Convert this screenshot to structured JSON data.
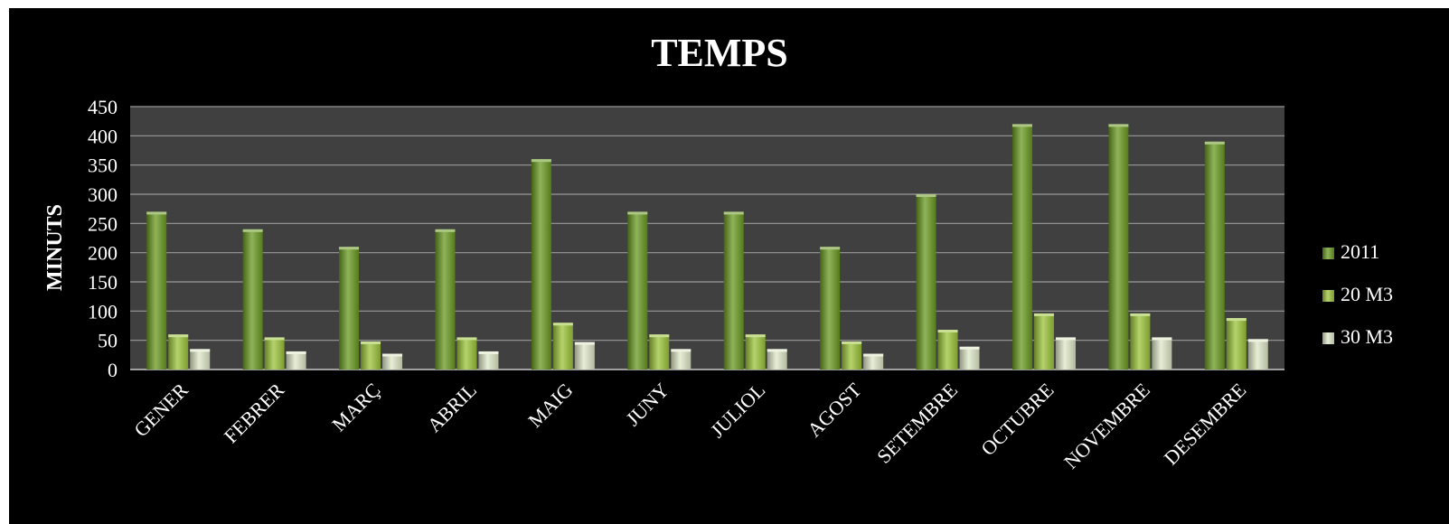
{
  "chart_data": {
    "type": "bar",
    "title": "TEMPS",
    "xlabel": "",
    "ylabel": "MINUTS",
    "ylim": [
      0,
      450
    ],
    "yticks": [
      0,
      50,
      100,
      150,
      200,
      250,
      300,
      350,
      400,
      450
    ],
    "grid": true,
    "legend_position": "right",
    "categories": [
      "GENER",
      "FEBRER",
      "MARÇ",
      "ABRIL",
      "MAIG",
      "JUNY",
      "JULIOL",
      "AGOST",
      "SETEMBRE",
      "OCTUBRE",
      "NOVEMBRE",
      "DESEMBRE"
    ],
    "series": [
      {
        "name": "2011",
        "values": [
          270,
          240,
          210,
          240,
          360,
          270,
          270,
          210,
          300,
          420,
          420,
          390
        ]
      },
      {
        "name": "20 M3",
        "values": [
          60,
          55,
          48,
          55,
          80,
          60,
          60,
          48,
          68,
          96,
          96,
          88
        ]
      },
      {
        "name": "30 M3",
        "values": [
          35,
          31,
          27,
          31,
          47,
          35,
          35,
          27,
          39,
          55,
          55,
          52
        ]
      }
    ]
  },
  "colors": {
    "background": "#000000",
    "plot_area": "#404040",
    "gridline": "#9a9a9a",
    "text": "#ffffff",
    "series": [
      "#6a9a22",
      "#9cc43a",
      "#dfe8c8"
    ]
  }
}
